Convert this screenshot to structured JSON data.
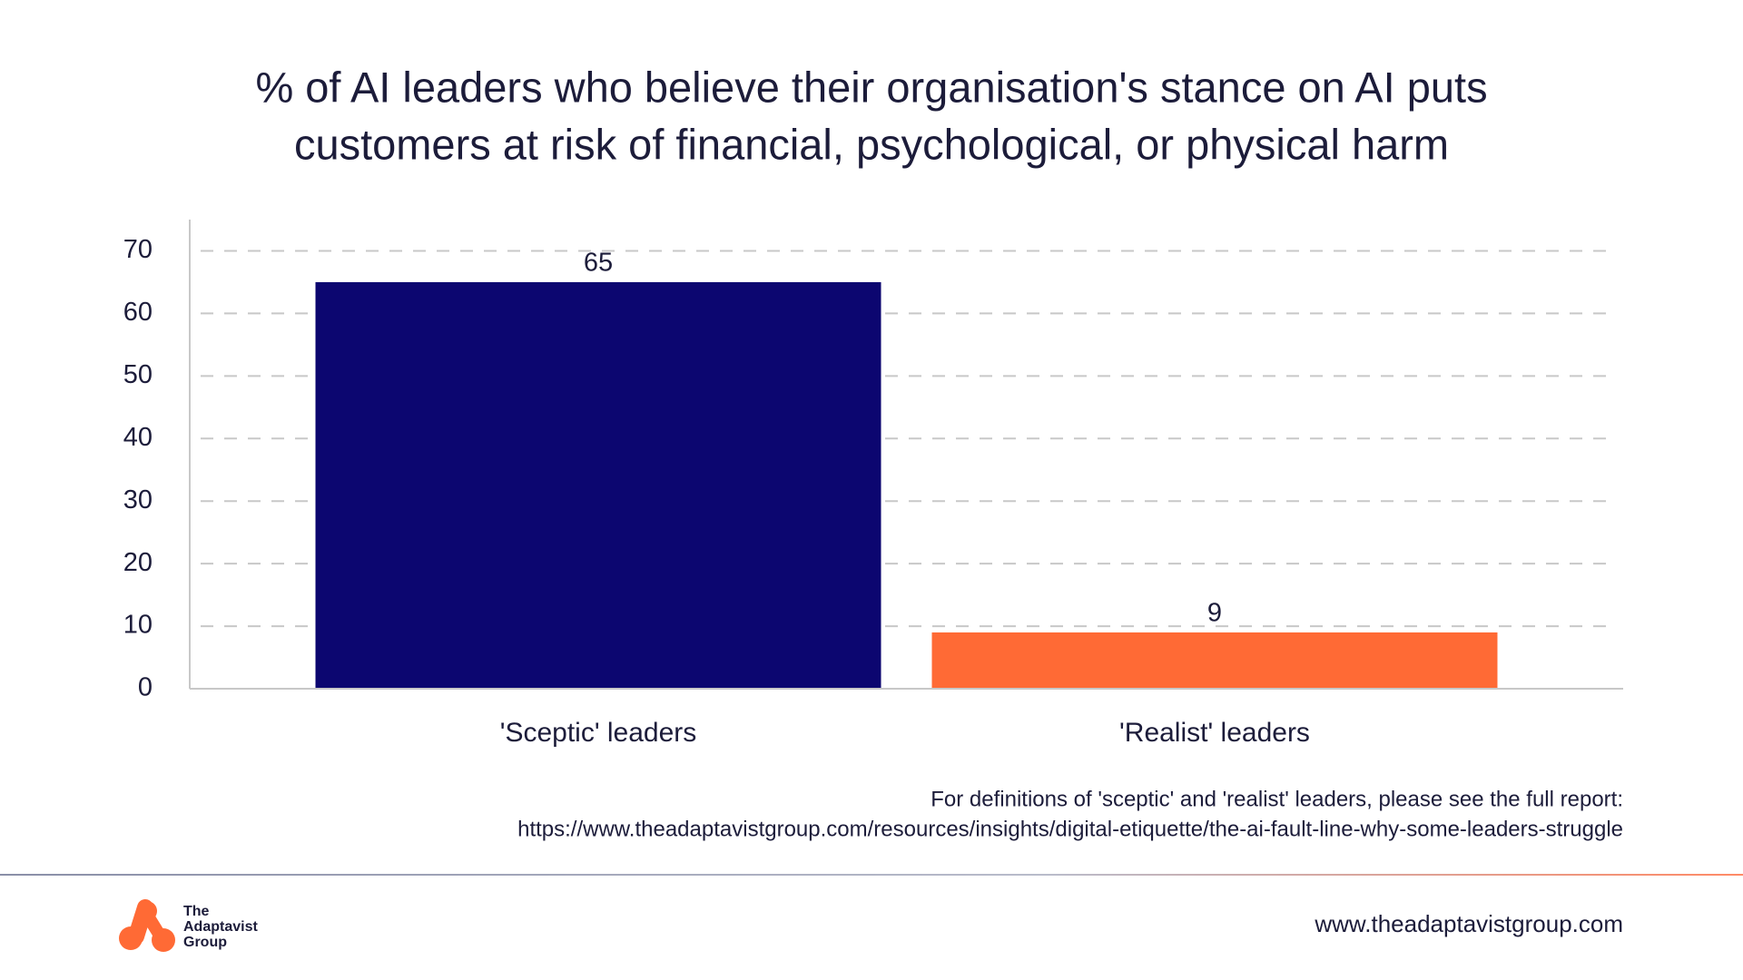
{
  "chart_data": {
    "type": "bar",
    "title": [
      "% of AI leaders who believe their organisation's stance on AI puts",
      "customers at risk of financial, psychological, or physical harm"
    ],
    "categories": [
      "'Sceptic' leaders",
      "'Realist' leaders"
    ],
    "values": [
      65,
      9
    ],
    "colors": [
      "#0c0670",
      "#ff6a35"
    ],
    "ylim": [
      0,
      75
    ],
    "yticks": [
      0,
      10,
      20,
      30,
      40,
      50,
      60,
      70
    ],
    "grid": true,
    "notes": [
      "For definitions of 'sceptic' and 'realist' leaders, please see the full report:",
      "https://www.theadaptavistgroup.com/resources/insights/digital-etiquette/the-ai-fault-line-why-some-leaders-struggle"
    ]
  },
  "footer": {
    "logo_text": [
      "The",
      "Adaptavist",
      "Group"
    ],
    "website": "www.theadaptavistgroup.com"
  }
}
